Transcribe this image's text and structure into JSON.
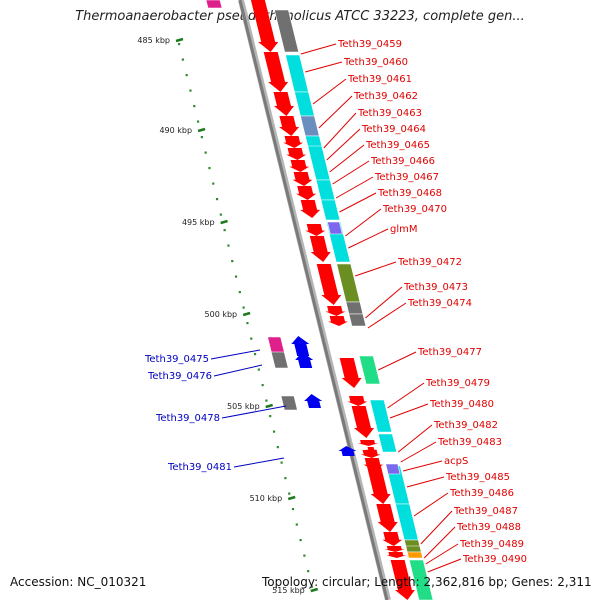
{
  "title": "Thermoanaerobacter pseudethanolicus ATCC 33223, complete gen...",
  "footer": {
    "accession": "Accession: NC_010321",
    "stats": "Topology: circular; Length: 2,362,816 bp; Genes: 2,311"
  },
  "colors": {
    "forward_label": "#e00000",
    "reverse_label": "#0000c0",
    "cds_forward": "#ff0000",
    "cds_reverse": "#0000ee",
    "backbone": "#888888",
    "cog_cyan": "#00dede",
    "cog_olive": "#6b8e23",
    "cog_gray": "#707070",
    "cog_steelblue": "#6a8fbf",
    "cog_green": "#22dd88",
    "cog_magenta": "#e0208a",
    "cog_purple": "#7b68ee",
    "cog_orange": "#ff9900"
  },
  "scale": {
    "unit": "kbp",
    "ticks": [
      {
        "label": "485 kbp",
        "kbp": 485
      },
      {
        "label": "490 kbp",
        "kbp": 490
      },
      {
        "label": "495 kbp",
        "kbp": 495
      },
      {
        "label": "500 kbp",
        "kbp": 500
      },
      {
        "label": "505 kbp",
        "kbp": 505
      },
      {
        "label": "510 kbp",
        "kbp": 510
      },
      {
        "label": "515 kbp",
        "kbp": 515
      }
    ]
  },
  "forward_genes": [
    {
      "name": "Teth39_0459",
      "cog": "gray"
    },
    {
      "name": "Teth39_0460",
      "cog": "cyan"
    },
    {
      "name": "Teth39_0461",
      "cog": "cyan"
    },
    {
      "name": "Teth39_0462",
      "cog": "steelblue"
    },
    {
      "name": "Teth39_0463",
      "cog": "cyan"
    },
    {
      "name": "Teth39_0464",
      "cog": "none"
    },
    {
      "name": "Teth39_0465",
      "cog": "none"
    },
    {
      "name": "Teth39_0466",
      "cog": "cyan"
    },
    {
      "name": "Teth39_0467",
      "cog": "cyan"
    },
    {
      "name": "Teth39_0468",
      "cog": "cyan"
    },
    {
      "name": "Teth39_0470",
      "cog": "none"
    },
    {
      "name": "glmM",
      "cog": "cyan"
    },
    {
      "name": "Teth39_0472",
      "cog": "olive"
    },
    {
      "name": "Teth39_0473",
      "cog": "gray"
    },
    {
      "name": "Teth39_0474",
      "cog": "gray"
    },
    {
      "name": "Teth39_0477",
      "cog": "green"
    },
    {
      "name": "Teth39_0479",
      "cog": "none"
    },
    {
      "name": "Teth39_0480",
      "cog": "cyan"
    },
    {
      "name": "Teth39_0482",
      "cog": "cyan"
    },
    {
      "name": "Teth39_0483",
      "cog": "none"
    },
    {
      "name": "acpS",
      "cog": "none"
    },
    {
      "name": "Teth39_0485",
      "cog": "cyan"
    },
    {
      "name": "Teth39_0486",
      "cog": "cyan"
    },
    {
      "name": "Teth39_0487",
      "cog": "olive"
    },
    {
      "name": "Teth39_0488",
      "cog": "olive"
    },
    {
      "name": "Teth39_0489",
      "cog": "orange"
    },
    {
      "name": "Teth39_0490",
      "cog": "green"
    }
  ],
  "reverse_genes": [
    {
      "name": "Teth39_0475",
      "cog": "magenta"
    },
    {
      "name": "Teth39_0476",
      "cog": "gray"
    },
    {
      "name": "Teth39_0478",
      "cog": "gray"
    },
    {
      "name": "Teth39_0481",
      "cog": "none"
    }
  ]
}
